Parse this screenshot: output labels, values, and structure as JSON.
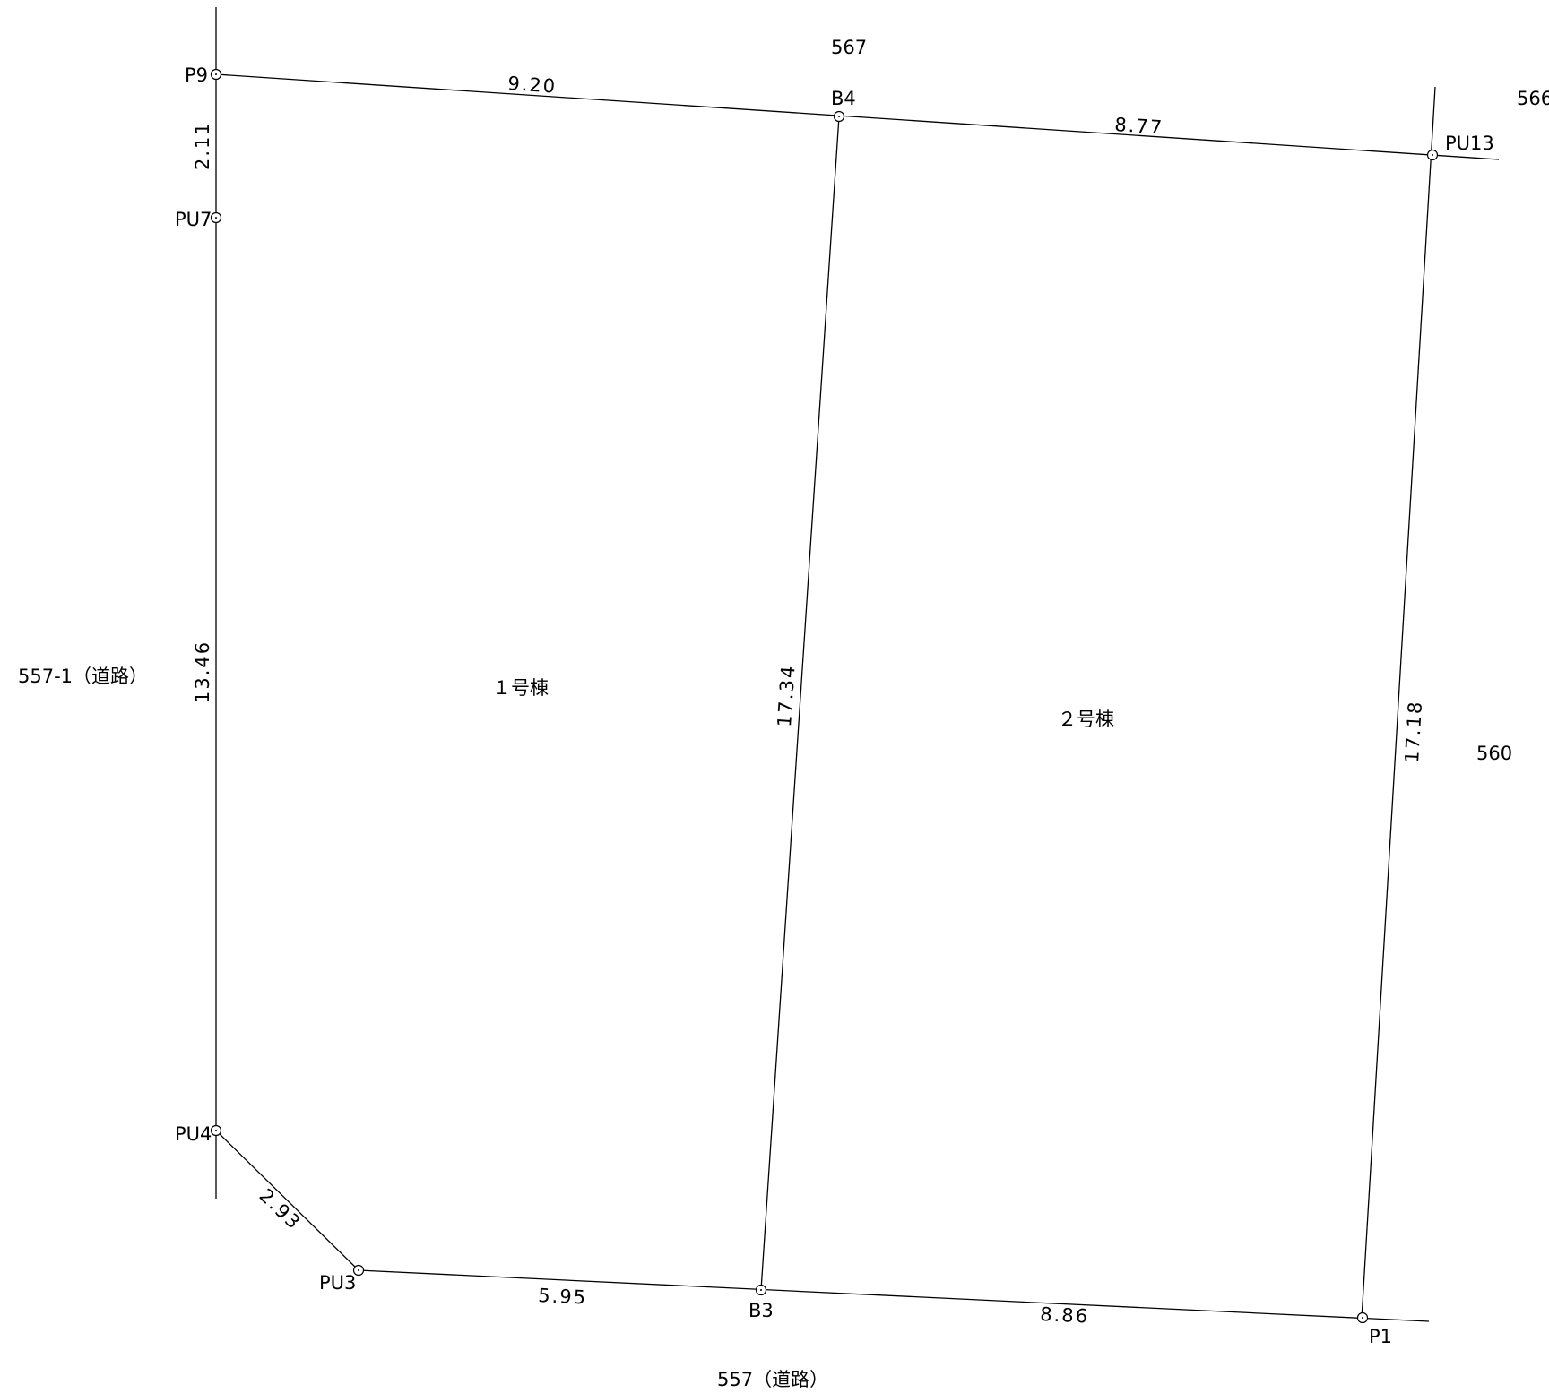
{
  "parcels": {
    "north": "567",
    "northeast": "566",
    "east": "560",
    "west": "557-1（道路）",
    "south": "557（道路）"
  },
  "buildings": {
    "lot1": "１号棟",
    "lot2": "２号棟"
  },
  "points": {
    "P9": "P9",
    "PU7": "PU7",
    "B4": "B4",
    "PU13": "PU13",
    "PU4": "PU4",
    "PU3": "PU3",
    "B3": "B3",
    "P1": "P1"
  },
  "dimensions": {
    "P9_B4": "9.20",
    "B4_PU13": "8.77",
    "P9_PU7": "2.11",
    "PU7_PU4": "13.46",
    "PU4_PU3": "2.93",
    "PU3_B3": "5.95",
    "B3_P1": "8.86",
    "B4_B3": "17.34",
    "PU13_P1": "17.18"
  }
}
